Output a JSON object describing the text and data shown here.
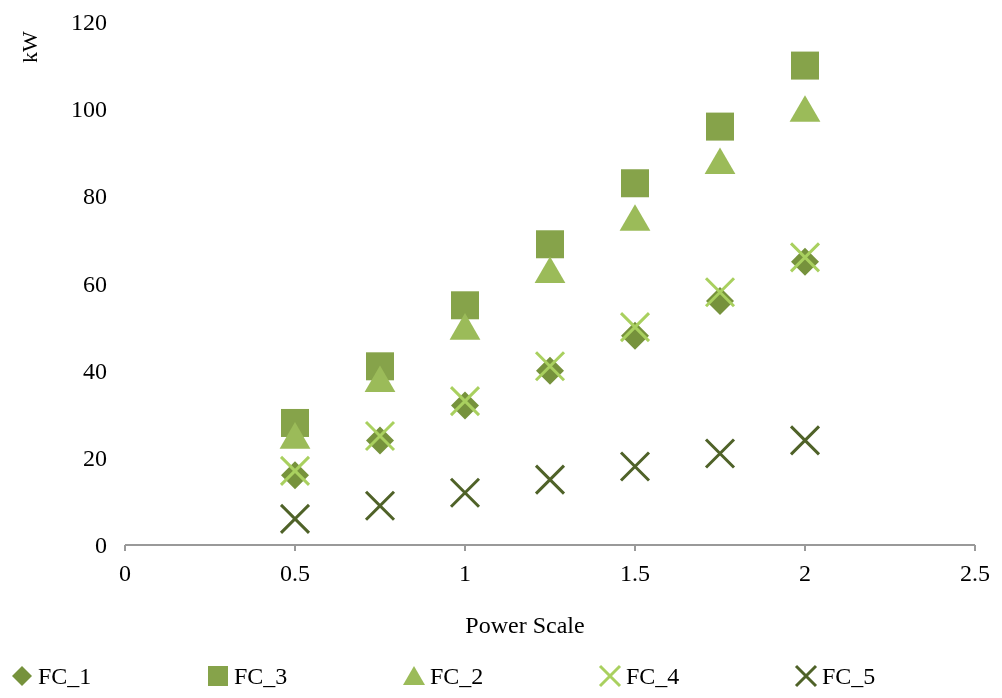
{
  "chart_data": {
    "type": "scatter",
    "xlabel": "Power Scale",
    "ylabel": "kW",
    "x": [
      0.5,
      0.75,
      1,
      1.25,
      1.5,
      1.75,
      2
    ],
    "xlim": [
      0,
      2.5
    ],
    "xticks": [
      0,
      0.5,
      1,
      1.5,
      2,
      2.5
    ],
    "ylim": [
      0,
      120
    ],
    "yticks": [
      0,
      20,
      40,
      60,
      80,
      100,
      120
    ],
    "grid": false,
    "legend": "bottom",
    "series": [
      {
        "name": "FC_1",
        "color": "#76923c",
        "marker": "diamond",
        "values": [
          16,
          24,
          32,
          40,
          48,
          56,
          65
        ]
      },
      {
        "name": "FC_3",
        "color": "#86a34a",
        "marker": "square",
        "values": [
          28,
          41,
          55,
          69,
          83,
          96,
          110
        ]
      },
      {
        "name": "FC_2",
        "color": "#9bbb59",
        "marker": "triangle",
        "values": [
          25,
          38,
          50,
          63,
          75,
          88,
          100
        ]
      },
      {
        "name": "FC_4",
        "color": "#a9d05f",
        "marker": "cross",
        "values": [
          17,
          25,
          33,
          41,
          50,
          58,
          66
        ]
      },
      {
        "name": "FC_5",
        "color": "#4f6228",
        "marker": "cross",
        "values": [
          6,
          9,
          12,
          15,
          18,
          21,
          24
        ]
      }
    ]
  }
}
